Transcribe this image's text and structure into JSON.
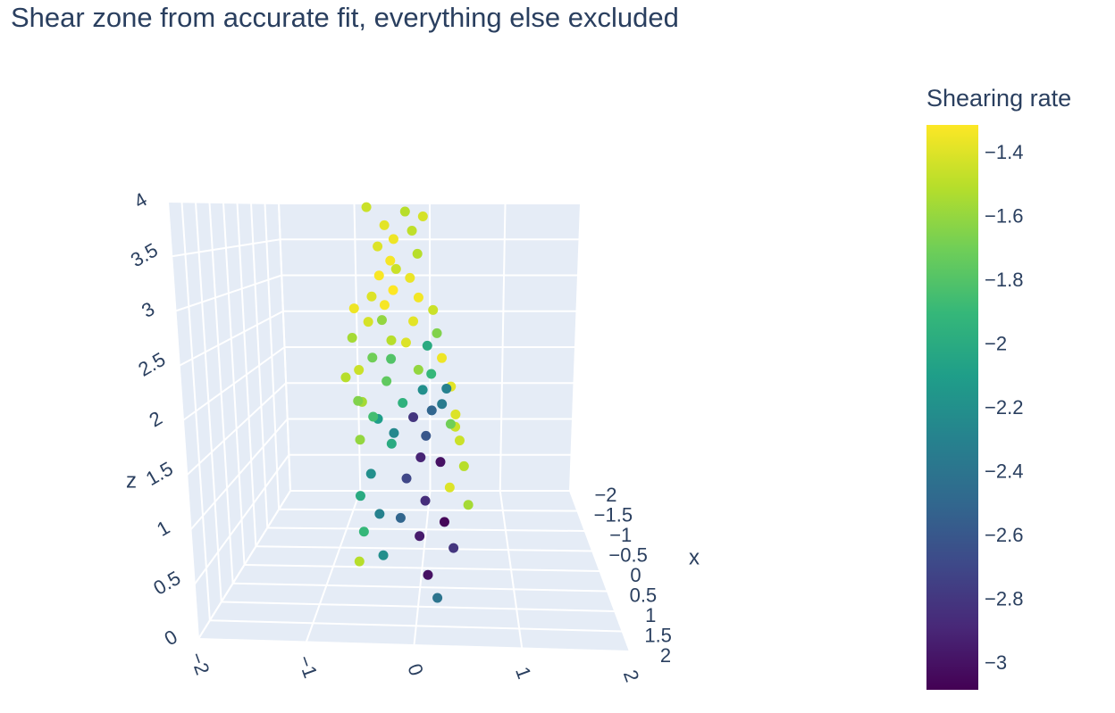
{
  "chart_data": {
    "type": "scatter3d",
    "title": "Shear zone from accurate fit, everything else excluded",
    "colorbar_title": "Shearing rate",
    "xaxis_title": "x",
    "zaxis_title": "z",
    "grid": true,
    "xlim": [
      -2,
      2
    ],
    "ylim": [
      -2,
      2
    ],
    "zlim": [
      0,
      4
    ],
    "xticks": [
      {
        "value": -2,
        "label": "−2"
      },
      {
        "value": -1.5,
        "label": "−1.5"
      },
      {
        "value": -1,
        "label": "−1"
      },
      {
        "value": -0.5,
        "label": "−0.5"
      },
      0,
      0.5,
      1,
      1.5,
      2
    ],
    "yticks": [
      {
        "value": -2,
        "label": "−2"
      },
      {
        "value": -1,
        "label": "−1"
      },
      0,
      1,
      2
    ],
    "zticks": [
      0,
      0.5,
      1,
      1.5,
      2,
      2.5,
      3,
      3.5,
      4
    ],
    "clim": [
      -3.08,
      -1.31
    ],
    "colorbar_ticks": [
      {
        "value": -1.4,
        "label": "−1.4"
      },
      {
        "value": -1.6,
        "label": "−1.6"
      },
      {
        "value": -1.8,
        "label": "−1.8"
      },
      {
        "value": -2,
        "label": "−2"
      },
      {
        "value": -2.2,
        "label": "−2.2"
      },
      {
        "value": -2.4,
        "label": "−2.4"
      },
      {
        "value": -2.6,
        "label": "−2.6"
      },
      {
        "value": -2.8,
        "label": "−2.8"
      },
      {
        "value": -3,
        "label": "−3"
      }
    ],
    "colorscale": [
      "#440154",
      "#482878",
      "#3e4989",
      "#31688e",
      "#26828e",
      "#1f9e89",
      "#35b779",
      "#6ece58",
      "#b5de2b",
      "#fde725"
    ],
    "x": [
      0.2,
      -0.3,
      0.1,
      -0.1,
      0.3,
      0.0,
      -0.4,
      0.2,
      -0.2,
      0.4,
      0.0,
      -0.3,
      0.1,
      0.3,
      -0.1,
      0.2,
      0.1,
      -0.2,
      0.3,
      0.0,
      -0.3,
      0.2,
      0.4,
      -0.1,
      0.1,
      -0.4,
      0.3,
      0.0,
      -0.2,
      0.2,
      0.4,
      -0.1,
      0.1,
      0.3,
      -0.2,
      0.0,
      0.4,
      -0.3,
      0.2,
      0.5,
      -0.1,
      0.1,
      0.3,
      -0.4,
      0.0,
      0.2,
      -0.2,
      0.4,
      0.1,
      -0.3,
      0.2,
      0.0,
      0.5,
      -0.2,
      0.3,
      0.6,
      0.1,
      0.4,
      0.7,
      0.2,
      0.5,
      0.8,
      0.3,
      0.6,
      0.9,
      0.4,
      0.7,
      1.0,
      0.6,
      0.9,
      1.1,
      1.3
    ],
    "y": [
      -0.55,
      -0.2,
      0.0,
      -0.4,
      -0.1,
      -0.3,
      -0.5,
      -0.05,
      -0.35,
      -0.25,
      -0.45,
      -0.15,
      -0.3,
      -0.5,
      -0.05,
      -0.38,
      -0.7,
      0.1,
      -0.4,
      -0.1,
      -0.6,
      0.15,
      -0.3,
      -0.75,
      0.05,
      -0.2,
      -0.5,
      0.2,
      -0.35,
      -0.65,
      0.1,
      -0.05,
      -0.8,
      0.3,
      -0.4,
      0.0,
      -0.6,
      0.25,
      -0.2,
      0.35,
      -0.7,
      0.1,
      -0.45,
      0.2,
      -0.1,
      0.35,
      -0.55,
      0.05,
      -0.3,
      0.3,
      -0.65,
      0.4,
      0.0,
      -0.35,
      0.2,
      -0.5,
      0.45,
      -0.15,
      -0.6,
      0.3,
      0.05,
      -0.4,
      0.5,
      -0.2,
      -0.55,
      0.25,
      0.0,
      -0.35,
      0.35,
      -0.6,
      0.1,
      0.2
    ],
    "z": [
      3.95,
      3.9,
      3.85,
      3.75,
      3.7,
      3.6,
      3.5,
      3.45,
      3.35,
      3.3,
      3.2,
      3.15,
      3.05,
      3.0,
      2.95,
      2.9,
      2.85,
      2.8,
      2.75,
      2.7,
      2.65,
      2.6,
      2.55,
      2.5,
      2.45,
      2.4,
      2.35,
      2.3,
      2.25,
      2.2,
      2.2,
      2.15,
      2.1,
      2.05,
      2.0,
      1.95,
      1.9,
      1.9,
      1.85,
      1.8,
      1.8,
      1.75,
      1.7,
      1.7,
      1.65,
      1.6,
      1.6,
      1.55,
      1.5,
      1.5,
      1.45,
      1.4,
      1.35,
      1.3,
      1.25,
      1.2,
      1.15,
      1.1,
      1.0,
      0.95,
      0.9,
      0.85,
      0.8,
      0.75,
      0.7,
      0.65,
      0.6,
      0.5,
      0.45,
      0.4,
      0.35,
      0.2
    ],
    "color_values": [
      -1.45,
      -1.5,
      -1.42,
      -1.38,
      -1.48,
      -1.35,
      -1.4,
      -1.5,
      -1.33,
      -1.45,
      -1.32,
      -1.36,
      -1.31,
      -1.4,
      -1.34,
      -1.33,
      -1.35,
      -1.45,
      -1.6,
      -1.38,
      -1.42,
      -1.65,
      -1.5,
      -1.55,
      -2.0,
      -1.4,
      -1.7,
      -1.35,
      -1.8,
      -1.45,
      -1.9,
      -1.6,
      -1.5,
      -1.38,
      -1.75,
      -2.2,
      -1.55,
      -2.3,
      -1.95,
      -1.4,
      -1.65,
      -2.5,
      -2.1,
      -2.35,
      -2.8,
      -1.45,
      -1.85,
      -2.6,
      -2.25,
      -1.7,
      -1.6,
      -1.45,
      -2.9,
      -2.0,
      -3.0,
      -2.2,
      -1.5,
      -2.7,
      -2.0,
      -1.4,
      -2.85,
      -2.3,
      -1.55,
      -2.5,
      -1.9,
      -3.05,
      -2.95,
      -2.2,
      -2.8,
      -1.5,
      -3.0,
      -2.4
    ]
  }
}
